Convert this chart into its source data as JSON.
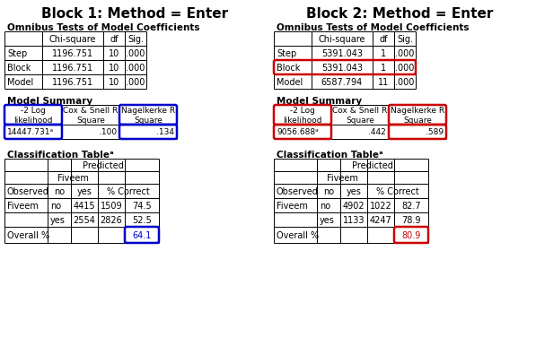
{
  "bg_color": "#ffffff",
  "block1_title": "Block 1: Method = Enter",
  "block2_title": "Block 2: Method = Enter",
  "omnibus_title": "Omnibus Tests of Model Coefficients",
  "model_summary_title": "Model Summary",
  "classification_title": "Classification Table",
  "sup_a": "ᵃ",
  "block1_omnibus": {
    "headers": [
      "",
      "Chi-square",
      "df",
      "Sig."
    ],
    "rows": [
      [
        "Step",
        "1196.751",
        "10",
        ".000"
      ],
      [
        "Block",
        "1196.751",
        "10",
        ".000"
      ],
      [
        "Model",
        "1196.751",
        "10",
        ".000"
      ]
    ],
    "highlight_row": -1,
    "highlight_color": "#0000cc"
  },
  "block2_omnibus": {
    "headers": [
      "",
      "Chi-square",
      "df",
      "Sig."
    ],
    "rows": [
      [
        "Step",
        "5391.043",
        "1",
        ".000"
      ],
      [
        "Block",
        "5391.043",
        "1",
        ".000"
      ],
      [
        "Model",
        "6587.794",
        "11",
        ".000"
      ]
    ],
    "highlight_row": 1,
    "highlight_color": "#cc0000"
  },
  "block1_model_summary": {
    "headers": [
      "-2 Log\nlikelihood",
      "Cox & Snell R\nSquare",
      "Nagelkerke R\nSquare"
    ],
    "values": [
      "14447.731ᵃ",
      ".100",
      ".134"
    ],
    "highlight_cols": [
      0,
      2
    ],
    "highlight_color": "#0000cc"
  },
  "block2_model_summary": {
    "headers": [
      "-2 Log\nlikelihood",
      "Cox & Snell R\nSquare",
      "Nagelkerke R\nSquare"
    ],
    "values": [
      "9056.688ᵃ",
      ".442",
      ".589"
    ],
    "highlight_cols": [
      0,
      2
    ],
    "highlight_color": "#cc0000"
  },
  "block1_classification": {
    "rows": [
      [
        "Fiveem",
        "no",
        "4415",
        "1509",
        "74.5"
      ],
      [
        "",
        "yes",
        "2554",
        "2826",
        "52.5"
      ],
      [
        "Overall %",
        "",
        "",
        "",
        "64.1"
      ]
    ],
    "highlight_cell": [
      2,
      4
    ],
    "highlight_color": "#0000cc"
  },
  "block2_classification": {
    "rows": [
      [
        "Fiveem",
        "no",
        "4902",
        "1022",
        "82.7"
      ],
      [
        "",
        "yes",
        "1133",
        "4247",
        "78.9"
      ],
      [
        "Overall %",
        "",
        "",
        "",
        "80.9"
      ]
    ],
    "highlight_cell": [
      2,
      4
    ],
    "highlight_color": "#cc0000"
  }
}
